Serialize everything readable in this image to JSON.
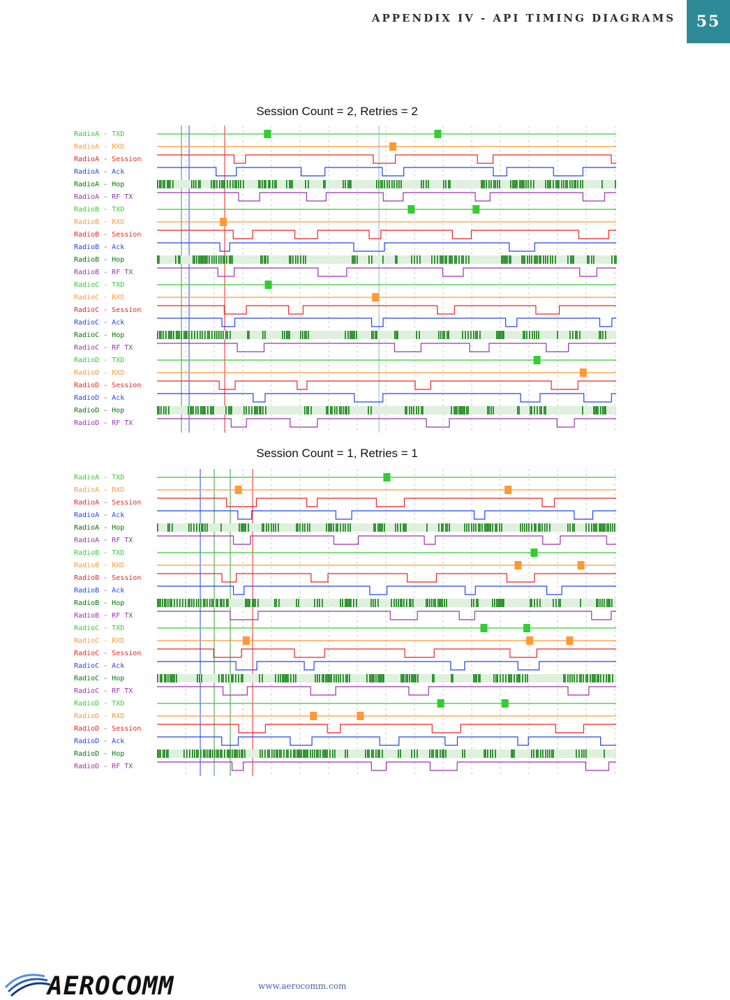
{
  "header": {
    "title": "APPENDIX IV - API TIMING DIAGRAMS",
    "page_number": "55"
  },
  "captions": [
    "Session Count = 2, Retries = 2",
    "Session Count = 1, Retries = 1"
  ],
  "diagrams": [
    {
      "channels": [
        {
          "label": "RadioA - TXD",
          "color": "#33cc33"
        },
        {
          "label": "RadioA - RXD",
          "color": "#ff9933"
        },
        {
          "label": "RadioA - Session",
          "color": "#ee2222"
        },
        {
          "label": "RadioA - Ack",
          "color": "#2244ee"
        },
        {
          "label": "RadioA - Hop",
          "color": "#007700"
        },
        {
          "label": "RadioA - RF TX",
          "color": "#9933aa"
        },
        {
          "label": "RadioB - TXD",
          "color": "#33cc33"
        },
        {
          "label": "RadioB - RXD",
          "color": "#ff9933"
        },
        {
          "label": "RadioB - Session",
          "color": "#ee2222"
        },
        {
          "label": "RadioB - Ack",
          "color": "#2244ee"
        },
        {
          "label": "RadioB - Hop",
          "color": "#007700"
        },
        {
          "label": "RadioB - RF TX",
          "color": "#9933aa"
        },
        {
          "label": "RadioC - TXD",
          "color": "#33cc33"
        },
        {
          "label": "RadioC - RXD",
          "color": "#ff9933"
        },
        {
          "label": "RadioC - Session",
          "color": "#ee2222"
        },
        {
          "label": "RadioC - Ack",
          "color": "#2244ee"
        },
        {
          "label": "RadioC - Hop",
          "color": "#007700"
        },
        {
          "label": "RadioC - RF TX",
          "color": "#9933aa"
        },
        {
          "label": "RadioD - TXD",
          "color": "#33cc33"
        },
        {
          "label": "RadioD - RXD",
          "color": "#ff9933"
        },
        {
          "label": "RadioD - Session",
          "color": "#ee2222"
        },
        {
          "label": "RadioD - Ack",
          "color": "#2244ee"
        },
        {
          "label": "RadioD - Hop",
          "color": "#007700"
        },
        {
          "label": "RadioD - RF TX",
          "color": "#9933aa"
        }
      ]
    },
    {
      "channels": [
        {
          "label": "RadioA - TXD",
          "color": "#33cc33"
        },
        {
          "label": "RadioA - RXD",
          "color": "#ff9933"
        },
        {
          "label": "RadioA - Session",
          "color": "#ee2222"
        },
        {
          "label": "RadioA - Ack",
          "color": "#2244ee"
        },
        {
          "label": "RadioA - Hop",
          "color": "#007700"
        },
        {
          "label": "RadioA - RF TX",
          "color": "#9933aa"
        },
        {
          "label": "RadioB - TXD",
          "color": "#33cc33"
        },
        {
          "label": "RadioB - RXD",
          "color": "#ff9933"
        },
        {
          "label": "RadioB - Session",
          "color": "#ee2222"
        },
        {
          "label": "RadioB - Ack",
          "color": "#2244ee"
        },
        {
          "label": "RadioB - Hop",
          "color": "#007700"
        },
        {
          "label": "RadioB - RF TX",
          "color": "#9933aa"
        },
        {
          "label": "RadioC - TXD",
          "color": "#33cc33"
        },
        {
          "label": "RadioC - RXD",
          "color": "#ff9933"
        },
        {
          "label": "RadioC - Session",
          "color": "#ee2222"
        },
        {
          "label": "RadioC - Ack",
          "color": "#2244ee"
        },
        {
          "label": "RadioC - Hop",
          "color": "#007700"
        },
        {
          "label": "RadioC - RF TX",
          "color": "#9933aa"
        },
        {
          "label": "RadioD - TXD",
          "color": "#33cc33"
        },
        {
          "label": "RadioD - RXD",
          "color": "#ff9933"
        },
        {
          "label": "RadioD - Session",
          "color": "#ee2222"
        },
        {
          "label": "RadioD - Ack",
          "color": "#2244ee"
        },
        {
          "label": "RadioD - Hop",
          "color": "#007700"
        },
        {
          "label": "RadioD - RF TX",
          "color": "#9933aa"
        }
      ]
    }
  ],
  "footer": {
    "logo_text": "AEROCOMM",
    "url": "www.aerocomm.com"
  }
}
